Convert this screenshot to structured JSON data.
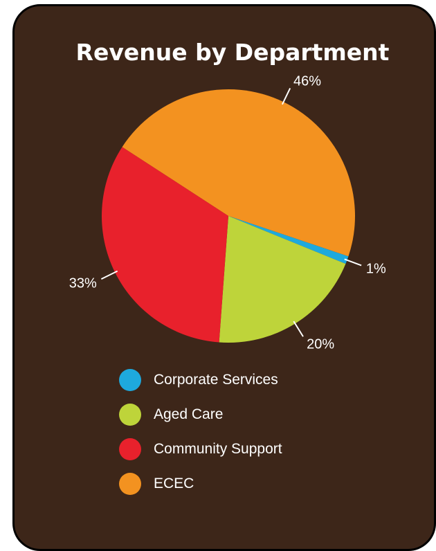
{
  "chart_data": {
    "type": "pie",
    "title": "Revenue by Department",
    "slices": [
      {
        "name": "ECEC",
        "value": 46,
        "label": "46%",
        "color": "#f39220"
      },
      {
        "name": "Corporate Services",
        "value": 1,
        "label": "1%",
        "color": "#1ea9dd"
      },
      {
        "name": "Aged Care",
        "value": 20,
        "label": "20%",
        "color": "#bed43a"
      },
      {
        "name": "Community Support",
        "value": 33,
        "label": "33%",
        "color": "#e8212c"
      }
    ],
    "legend": [
      {
        "label": "Corporate Services",
        "color": "#1ea9dd"
      },
      {
        "label": "Aged Care",
        "color": "#bed43a"
      },
      {
        "label": "Community Support",
        "color": "#e8212c"
      },
      {
        "label": "ECEC",
        "color": "#f39220"
      }
    ],
    "legend_position": "bottom",
    "background_color": "#3d2619"
  }
}
